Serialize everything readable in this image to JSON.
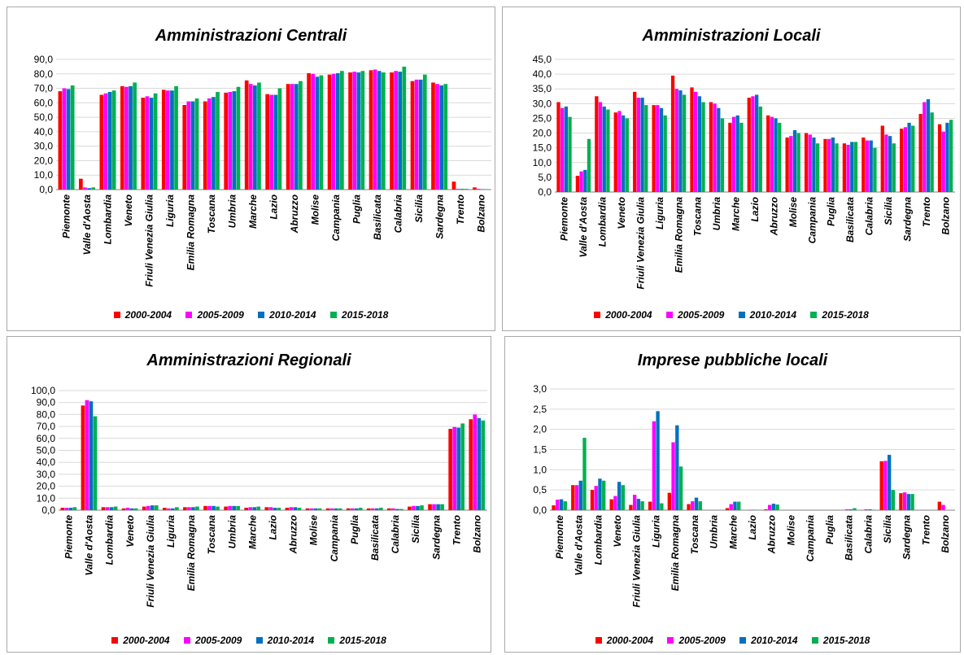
{
  "colors": {
    "s1": "#ff0000",
    "s2": "#ff00ff",
    "s3": "#0070c0",
    "s4": "#00b050",
    "grid": "#d9d9d9",
    "axis": "#808080"
  },
  "chart_data": [
    {
      "type": "bar",
      "title": "Amministrazioni Centrali",
      "ylim": [
        0,
        90
      ],
      "ytick_step": 10,
      "ytick_labels": [
        "0,0",
        "10,0",
        "20,0",
        "30,0",
        "40,0",
        "50,0",
        "60,0",
        "70,0",
        "80,0",
        "90,0"
      ],
      "grid": true,
      "legend": "bottom",
      "categories": [
        "Piemonte",
        "Valle d'Aosta",
        "Lombardia",
        "Veneto",
        "Friuli Venezia Giulia",
        "Liguria",
        "Emilia Romagna",
        "Toscana",
        "Umbria",
        "Marche",
        "Lazio",
        "Abruzzo",
        "Molise",
        "Campania",
        "Puglia",
        "Basilicata",
        "Calabria",
        "Sicilia",
        "Sardegna",
        "Trento",
        "Bolzano"
      ],
      "series": [
        {
          "name": "2000-2004",
          "values": [
            68,
            7.5,
            65.5,
            71.5,
            63.5,
            69,
            58.5,
            61,
            67,
            75.5,
            66,
            73,
            80.5,
            79.5,
            81,
            82.5,
            81,
            75,
            74,
            5.5,
            1.5
          ]
        },
        {
          "name": "2005-2009",
          "values": [
            70,
            1.5,
            66.5,
            71,
            64.5,
            68.5,
            61,
            63,
            67.5,
            73,
            65.5,
            73,
            80,
            80,
            81.5,
            83,
            82,
            76,
            73,
            0.5,
            0.5
          ]
        },
        {
          "name": "2010-2014",
          "values": [
            69.5,
            1,
            67.5,
            71.5,
            63.5,
            68.5,
            61,
            64,
            68,
            72,
            65.5,
            73,
            78,
            80.5,
            81,
            82,
            81.5,
            76,
            72,
            0.5,
            0.3
          ]
        },
        {
          "name": "2015-2018",
          "values": [
            72,
            1.5,
            68.5,
            74,
            66.5,
            71.5,
            63,
            67.5,
            71,
            74,
            70,
            75,
            79,
            82,
            82,
            81,
            85,
            79.5,
            73,
            0.5,
            0.3
          ]
        }
      ]
    },
    {
      "type": "bar",
      "title": "Amministrazioni Locali",
      "ylim": [
        0,
        45
      ],
      "ytick_step": 5,
      "ytick_labels": [
        "0,0",
        "5,0",
        "10,0",
        "15,0",
        "20,0",
        "25,0",
        "30,0",
        "35,0",
        "40,0",
        "45,0"
      ],
      "grid": true,
      "legend": "bottom",
      "categories": [
        "Piemonte",
        "Valle d'Aosta",
        "Lombardia",
        "Veneto",
        "Friuli Venezia Giulia",
        "Liguria",
        "Emilia Romagna",
        "Toscana",
        "Umbria",
        "Marche",
        "Lazio",
        "Abruzzo",
        "Molise",
        "Campania",
        "Puglia",
        "Basilicata",
        "Calabria",
        "Sicilia",
        "Sardegna",
        "Trento",
        "Bolzano"
      ],
      "series": [
        {
          "name": "2000-2004",
          "values": [
            30.5,
            5.5,
            32.5,
            27,
            34,
            29.5,
            39.5,
            35.5,
            30.5,
            23.5,
            32,
            26,
            18.5,
            20,
            18,
            16.5,
            18.5,
            22.5,
            21.5,
            26.5,
            23
          ]
        },
        {
          "name": "2005-2009",
          "values": [
            28.5,
            7,
            30.5,
            27.5,
            32,
            29.5,
            35,
            34,
            30,
            25.5,
            32.5,
            25.5,
            19,
            19.5,
            18,
            16,
            17.5,
            19.5,
            22,
            30.5,
            20.5
          ]
        },
        {
          "name": "2010-2014",
          "values": [
            29,
            7.5,
            29,
            26,
            32,
            28.5,
            34.5,
            32.5,
            28.5,
            26,
            33,
            25,
            21,
            18.5,
            18.5,
            17,
            17.5,
            19,
            23.5,
            31.5,
            23.5
          ]
        },
        {
          "name": "2015-2018",
          "values": [
            25.5,
            18,
            28,
            25,
            29.5,
            26,
            33,
            30.5,
            25,
            23.5,
            29,
            23.5,
            20,
            16.5,
            16.5,
            17,
            15,
            16.5,
            22.5,
            27,
            24.5
          ]
        }
      ]
    },
    {
      "type": "bar",
      "title": "Amministrazioni Regionali",
      "ylim": [
        0,
        100
      ],
      "ytick_step": 10,
      "ytick_labels": [
        "0,0",
        "10,0",
        "20,0",
        "30,0",
        "40,0",
        "50,0",
        "60,0",
        "70,0",
        "80,0",
        "90,0",
        "100,0"
      ],
      "grid": true,
      "legend": "bottom",
      "categories": [
        "Piemonte",
        "Valle d'Aosta",
        "Lombardia",
        "Veneto",
        "Friuli Venezia Giulia",
        "Liguria",
        "Emilia Romagna",
        "Toscana",
        "Umbria",
        "Marche",
        "Lazio",
        "Abruzzo",
        "Molise",
        "Campania",
        "Puglia",
        "Basilicata",
        "Calabria",
        "Sicilia",
        "Sardegna",
        "Trento",
        "Bolzano"
      ],
      "series": [
        {
          "name": "2000-2004",
          "values": [
            2,
            87.5,
            2.5,
            1.5,
            3,
            2,
            2.5,
            3.5,
            3,
            2,
            2.5,
            2,
            1.5,
            1.5,
            1.5,
            1.5,
            1.5,
            3,
            5,
            68,
            76
          ]
        },
        {
          "name": "2005-2009",
          "values": [
            2,
            92,
            2.5,
            2,
            3.5,
            1.5,
            2.5,
            3.5,
            3.5,
            2.5,
            2.5,
            2.5,
            1.5,
            1.5,
            1.5,
            1.5,
            1.5,
            3.5,
            5,
            69.5,
            80
          ]
        },
        {
          "name": "2010-2014",
          "values": [
            2,
            91,
            2.5,
            1.5,
            4,
            1.5,
            2.5,
            3.5,
            3.5,
            2.5,
            2,
            2.5,
            1.5,
            1.5,
            1.5,
            1.5,
            1,
            3.5,
            5,
            69,
            77
          ]
        },
        {
          "name": "2015-2018",
          "values": [
            2.5,
            78.5,
            3,
            1.5,
            4,
            2.5,
            3,
            3,
            3.5,
            3,
            2,
            2,
            1.5,
            1.5,
            2,
            2,
            1,
            4,
            5,
            72.5,
            75
          ]
        }
      ]
    },
    {
      "type": "bar",
      "title": "Imprese pubbliche locali",
      "ylim": [
        0,
        3
      ],
      "ytick_step": 0.5,
      "ytick_labels": [
        "0,0",
        "0,5",
        "1,0",
        "1,5",
        "2,0",
        "2,5",
        "3,0"
      ],
      "grid": true,
      "legend": "bottom",
      "categories": [
        "Piemonte",
        "Valle d'Aosta",
        "Lombardia",
        "Veneto",
        "Friuli Venezia Giulia",
        "Liguria",
        "Emilia Romagna",
        "Toscana",
        "Umbria",
        "Marche",
        "Lazio",
        "Abruzzo",
        "Molise",
        "Campania",
        "Puglia",
        "Basilicata",
        "Calabria",
        "Sicilia",
        "Sardegna",
        "Trento",
        "Bolzano"
      ],
      "series": [
        {
          "name": "2000-2004",
          "values": [
            0.12,
            0.62,
            0.5,
            0.27,
            0.13,
            0.21,
            0.43,
            0.15,
            0,
            0.05,
            0,
            0.02,
            0,
            0,
            0,
            0,
            0,
            1.21,
            0.42,
            0,
            0.21
          ]
        },
        {
          "name": "2005-2009",
          "values": [
            0.26,
            0.62,
            0.6,
            0.35,
            0.38,
            2.2,
            1.68,
            0.22,
            0,
            0.15,
            0.01,
            0.13,
            0,
            0,
            0,
            0.02,
            0.02,
            1.22,
            0.44,
            0,
            0.13
          ]
        },
        {
          "name": "2010-2014",
          "values": [
            0.27,
            0.73,
            0.78,
            0.7,
            0.28,
            2.45,
            2.1,
            0.31,
            0,
            0.21,
            0.01,
            0.16,
            0,
            0,
            0,
            0.02,
            0.02,
            1.37,
            0.4,
            0,
            0
          ]
        },
        {
          "name": "2015-2018",
          "values": [
            0.22,
            1.79,
            0.73,
            0.62,
            0.22,
            0.17,
            1.08,
            0.22,
            0,
            0.21,
            0.01,
            0.14,
            0,
            0,
            0,
            0.05,
            0.01,
            0.5,
            0.4,
            0,
            0
          ]
        }
      ]
    }
  ]
}
